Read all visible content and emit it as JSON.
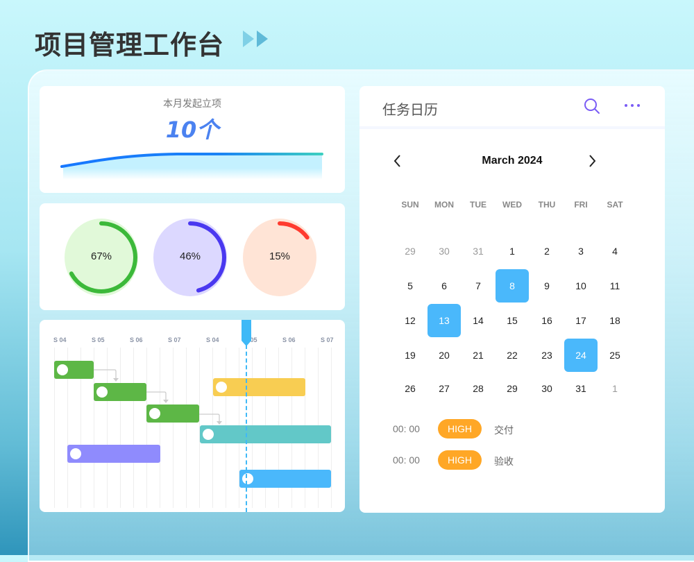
{
  "header": {
    "title": "项目管理工作台",
    "icon": "double-play-icon"
  },
  "monthly": {
    "label": "本月发起立项",
    "value": "10个"
  },
  "rings": [
    {
      "value": 67,
      "label": "67%",
      "color": "#3cb93a",
      "bg": "#e1f9d9"
    },
    {
      "value": 46,
      "label": "46%",
      "color": "#4a38f0",
      "bg": "#dcd8ff"
    },
    {
      "value": 15,
      "label": "15%",
      "color": "#ff3b2f",
      "bg": "#ffe4d6"
    }
  ],
  "gantt": {
    "ticks": [
      "S 04",
      "S 05",
      "S 06",
      "S 07",
      "S 04",
      "S 05",
      "S 06",
      "S 07"
    ],
    "bars": [
      {
        "color": "#5db746"
      },
      {
        "color": "#5db746"
      },
      {
        "color": "#5db746"
      },
      {
        "color": "#62c8c8"
      },
      {
        "color": "#f8cd52"
      },
      {
        "color": "#8f8bfd"
      },
      {
        "color": "#4ab8fb"
      }
    ],
    "today_color": "#3fb9f7"
  },
  "calendar": {
    "title": "任务日历",
    "search_icon": "search-icon",
    "more_icon": "more-horizontal-icon",
    "month": "March 2024",
    "weekdays": [
      "SUN",
      "MON",
      "TUE",
      "WED",
      "THU",
      "FRI",
      "SAT"
    ],
    "weeks": [
      [
        {
          "d": "29",
          "m": true
        },
        {
          "d": "30",
          "m": true
        },
        {
          "d": "31",
          "m": true
        },
        {
          "d": "1"
        },
        {
          "d": "2"
        },
        {
          "d": "3"
        },
        {
          "d": "4"
        }
      ],
      [
        {
          "d": "5"
        },
        {
          "d": "6"
        },
        {
          "d": "7"
        },
        {
          "d": "8",
          "s": true
        },
        {
          "d": "9"
        },
        {
          "d": "10"
        },
        {
          "d": "11"
        }
      ],
      [
        {
          "d": "12"
        },
        {
          "d": "13",
          "s": true
        },
        {
          "d": "14"
        },
        {
          "d": "15"
        },
        {
          "d": "16"
        },
        {
          "d": "17"
        },
        {
          "d": "18"
        }
      ],
      [
        {
          "d": "19"
        },
        {
          "d": "20"
        },
        {
          "d": "21"
        },
        {
          "d": "22"
        },
        {
          "d": "23"
        },
        {
          "d": "24",
          "s": true
        },
        {
          "d": "25"
        }
      ],
      [
        {
          "d": "26"
        },
        {
          "d": "27"
        },
        {
          "d": "28"
        },
        {
          "d": "29"
        },
        {
          "d": "30"
        },
        {
          "d": "31"
        },
        {
          "d": "1",
          "m": true
        }
      ]
    ],
    "events": [
      {
        "time": "00: 00",
        "priority": "HIGH",
        "name": "交付"
      },
      {
        "time": "00: 00",
        "priority": "HIGH",
        "name": "验收"
      }
    ],
    "accent": "#4ab8fb",
    "priority_color": "#ffa726"
  }
}
